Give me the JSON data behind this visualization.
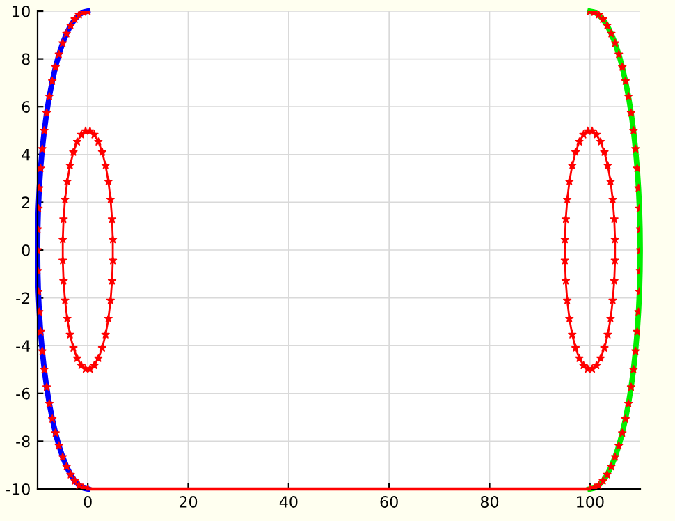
{
  "chart_data": {
    "type": "line",
    "xlim": [
      -10,
      110
    ],
    "ylim": [
      -10,
      10
    ],
    "xticks": [
      0,
      20,
      40,
      60,
      80,
      100
    ],
    "yticks": [
      -10,
      -8,
      -6,
      -4,
      -2,
      0,
      2,
      4,
      6,
      8,
      10
    ],
    "grid": true,
    "series": [
      {
        "color": "#0000ff",
        "marker": "none",
        "x": [
          0,
          -0.87,
          -1.74,
          -2.59,
          -3.42,
          -4.23,
          -5,
          -5.74,
          -6.43,
          -7.07,
          -7.66,
          -8.19,
          -8.66,
          -9.06,
          -9.4,
          -9.66,
          -9.85,
          -9.96,
          -10,
          -9.96,
          -9.85,
          -9.66,
          -9.4,
          -9.06,
          -8.66,
          -8.19,
          -7.66,
          -7.07,
          -6.43,
          -5.74,
          -5,
          -4.23,
          -3.42,
          -2.59,
          -1.74,
          -0.87,
          0
        ],
        "values": [
          10,
          9.96,
          9.85,
          9.66,
          9.4,
          9.06,
          8.66,
          8.19,
          7.66,
          7.07,
          6.43,
          5.74,
          5,
          4.23,
          3.42,
          2.59,
          1.74,
          0.87,
          0,
          -0.87,
          -1.74,
          -2.59,
          -3.42,
          -4.23,
          -5,
          -5.74,
          -6.43,
          -7.07,
          -7.66,
          -8.19,
          -8.66,
          -9.06,
          -9.4,
          -9.66,
          -9.85,
          -9.96,
          -10
        ]
      },
      {
        "color": "#00ee00",
        "marker": "none",
        "x": [
          100,
          100.87,
          101.74,
          102.59,
          103.42,
          104.23,
          105,
          105.74,
          106.43,
          107.07,
          107.66,
          108.19,
          108.66,
          109.06,
          109.4,
          109.66,
          109.85,
          109.96,
          110,
          109.96,
          109.85,
          109.66,
          109.4,
          109.06,
          108.66,
          108.19,
          107.66,
          107.07,
          106.43,
          105.74,
          105,
          104.23,
          103.42,
          102.59,
          101.74,
          100.87,
          100
        ],
        "values": [
          10,
          9.96,
          9.85,
          9.66,
          9.4,
          9.06,
          8.66,
          8.19,
          7.66,
          7.07,
          6.43,
          5.74,
          5,
          4.23,
          3.42,
          2.59,
          1.74,
          0.87,
          0,
          -0.87,
          -1.74,
          -2.59,
          -3.42,
          -4.23,
          -5,
          -5.74,
          -6.43,
          -7.07,
          -7.66,
          -8.19,
          -8.66,
          -9.06,
          -9.4,
          -9.66,
          -9.85,
          -9.96,
          -10
        ]
      },
      {
        "color": "#ff0000",
        "marker": "none",
        "x": [
          0,
          100
        ],
        "values": [
          -10,
          -10
        ]
      },
      {
        "type": "scatter",
        "color": "#ff0000",
        "marker": "star",
        "x": [
          0,
          -0.87,
          -1.74,
          -2.59,
          -3.42,
          -4.23,
          -5,
          -5.74,
          -6.43,
          -7.07,
          -7.66,
          -8.19,
          -8.66,
          -9.06,
          -9.4,
          -9.66,
          -9.85,
          -9.96,
          -10,
          -9.96,
          -9.85,
          -9.66,
          -9.4,
          -9.06,
          -8.66,
          -8.19,
          -7.66,
          -7.07,
          -6.43,
          -5.74,
          -5,
          -4.23,
          -3.42,
          -2.59,
          -1.74,
          -0.87,
          0
        ],
        "values": [
          10,
          9.96,
          9.85,
          9.66,
          9.4,
          9.06,
          8.66,
          8.19,
          7.66,
          7.07,
          6.43,
          5.74,
          5,
          4.23,
          3.42,
          2.59,
          1.74,
          0.87,
          0,
          -0.87,
          -1.74,
          -2.59,
          -3.42,
          -4.23,
          -5,
          -5.74,
          -6.43,
          -7.07,
          -7.66,
          -8.19,
          -8.66,
          -9.06,
          -9.4,
          -9.66,
          -9.85,
          -9.96,
          -10
        ]
      },
      {
        "type": "scatter",
        "color": "#ff0000",
        "marker": "star",
        "x": [
          100,
          100.87,
          101.74,
          102.59,
          103.42,
          104.23,
          105,
          105.74,
          106.43,
          107.07,
          107.66,
          108.19,
          108.66,
          109.06,
          109.4,
          109.66,
          109.85,
          109.96,
          110,
          109.96,
          109.85,
          109.66,
          109.4,
          109.06,
          108.66,
          108.19,
          107.66,
          107.07,
          106.43,
          105.74,
          105,
          104.23,
          103.42,
          102.59,
          101.74,
          100.87,
          100
        ],
        "values": [
          10,
          9.96,
          9.85,
          9.66,
          9.4,
          9.06,
          8.66,
          8.19,
          7.66,
          7.07,
          6.43,
          5.74,
          5,
          4.23,
          3.42,
          2.59,
          1.74,
          0.87,
          0,
          -0.87,
          -1.74,
          -2.59,
          -3.42,
          -4.23,
          -5,
          -5.74,
          -6.43,
          -7.07,
          -7.66,
          -8.19,
          -8.66,
          -9.06,
          -9.4,
          -9.66,
          -9.85,
          -9.96,
          -10
        ]
      },
      {
        "type": "scatter",
        "color": "#ff0000",
        "marker": "star",
        "line_style": "solid",
        "x": [
          4.98,
          4.83,
          4.53,
          4.1,
          3.54,
          2.87,
          2.11,
          1.29,
          0.44,
          -0.44,
          -1.29,
          -2.11,
          -2.87,
          -3.54,
          -4.1,
          -4.53,
          -4.83,
          -4.98,
          -4.98,
          -4.83,
          -4.53,
          -4.1,
          -3.54,
          -2.87,
          -2.11,
          -1.29,
          -0.44,
          0.44,
          1.29,
          2.11,
          2.87,
          3.54,
          4.1,
          4.53,
          4.83,
          4.98
        ],
        "values": [
          0.44,
          1.29,
          2.11,
          2.87,
          3.54,
          4.1,
          4.53,
          4.83,
          4.98,
          4.98,
          4.83,
          4.53,
          4.1,
          3.54,
          2.87,
          2.11,
          1.29,
          0.44,
          -0.44,
          -1.29,
          -2.11,
          -2.87,
          -3.54,
          -4.1,
          -4.53,
          -4.83,
          -4.98,
          -4.98,
          -4.83,
          -4.53,
          -4.1,
          -3.54,
          -2.87,
          -2.11,
          -1.29,
          -0.44
        ]
      },
      {
        "type": "scatter",
        "color": "#ff0000",
        "marker": "star",
        "line_style": "solid",
        "x": [
          104.98,
          104.83,
          104.53,
          104.1,
          103.54,
          102.87,
          102.11,
          101.29,
          100.44,
          99.56,
          98.71,
          97.89,
          97.13,
          96.46,
          95.9,
          95.47,
          95.17,
          95.02,
          95.02,
          95.17,
          95.47,
          95.9,
          96.46,
          97.13,
          97.89,
          98.71,
          99.56,
          100.44,
          101.29,
          102.11,
          102.87,
          103.54,
          104.1,
          104.53,
          104.83,
          104.98
        ],
        "values": [
          0.44,
          1.29,
          2.11,
          2.87,
          3.54,
          4.1,
          4.53,
          4.83,
          4.98,
          4.98,
          4.83,
          4.53,
          4.1,
          3.54,
          2.87,
          2.11,
          1.29,
          0.44,
          -0.44,
          -1.29,
          -2.11,
          -2.87,
          -3.54,
          -4.1,
          -4.53,
          -4.83,
          -4.98,
          -4.98,
          -4.83,
          -4.53,
          -4.1,
          -3.54,
          -2.87,
          -2.11,
          -1.29,
          -0.44
        ]
      }
    ]
  }
}
